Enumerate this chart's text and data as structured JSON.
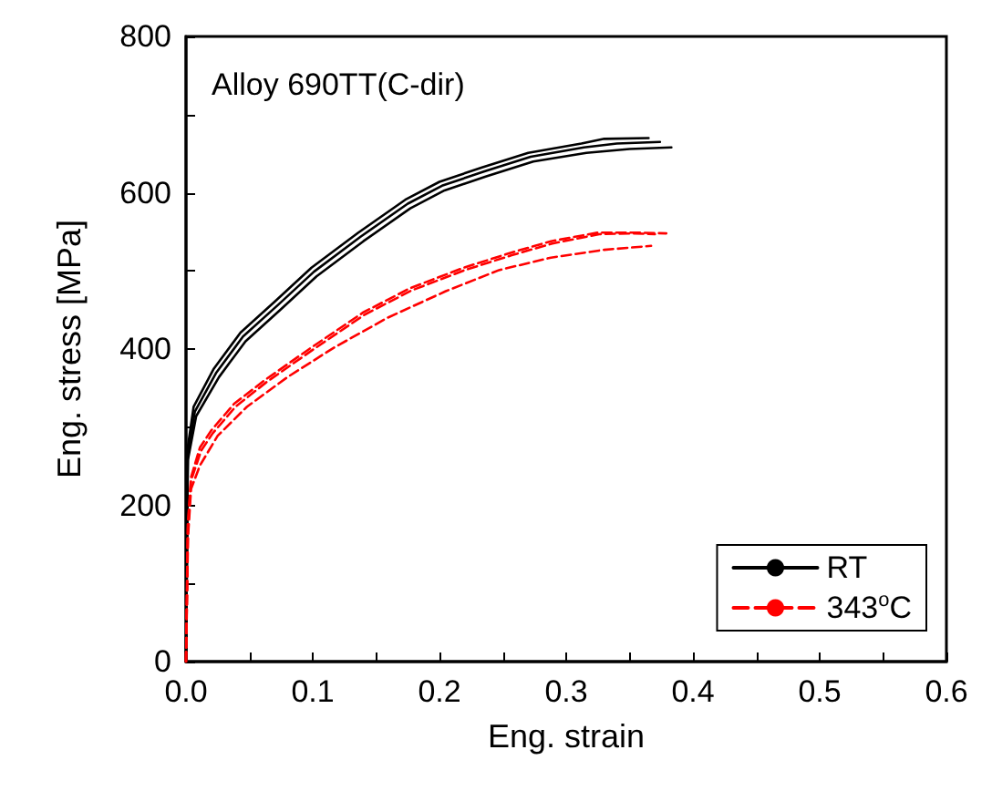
{
  "chart_data": {
    "type": "line",
    "xlabel": "Eng. strain",
    "ylabel": "Eng. stress [MPa]",
    "annotations": [
      "Alloy 690TT(C-dir)"
    ],
    "xlim": [
      0,
      0.6
    ],
    "xticks": [
      {
        "value": 0,
        "label": "0.0"
      },
      {
        "value": 0.05,
        "label": null
      },
      0.1,
      {
        "value": 0.15,
        "label": null
      },
      0.2,
      {
        "value": 0.25,
        "label": null
      },
      0.3,
      {
        "value": 0.35,
        "label": null
      },
      0.4,
      {
        "value": 0.45,
        "label": null
      },
      0.5,
      {
        "value": 0.55,
        "label": null
      },
      0.6
    ],
    "ylim": [
      0,
      800
    ],
    "yticks": [
      0,
      {
        "value": 100,
        "label": null
      },
      200,
      {
        "value": 300,
        "label": null
      },
      400,
      {
        "value": 500,
        "label": null
      },
      600,
      {
        "value": 700,
        "label": null
      },
      800
    ],
    "grid": false,
    "legend": "bottom right",
    "marker": "none",
    "series": [
      {
        "name": "RT",
        "color": "#000000",
        "line_style": "solid",
        "x": [
          0,
          0.0014,
          0.006,
          0.022,
          0.043,
          0.071,
          0.099,
          0.136,
          0.173,
          0.2,
          0.233,
          0.27,
          0.312,
          0.33,
          0.365
        ],
        "values": [
          0,
          274,
          326,
          375,
          421,
          462,
          504,
          549,
          591,
          614,
          632,
          651,
          663,
          669,
          670
        ]
      },
      {
        "color": "#000000",
        "line_style": "solid",
        "x": [
          0,
          0.0014,
          0.007,
          0.024,
          0.045,
          0.073,
          0.101,
          0.138,
          0.175,
          0.202,
          0.235,
          0.272,
          0.314,
          0.34,
          0.374
        ],
        "values": [
          0,
          265,
          320,
          370,
          416,
          457,
          499,
          544,
          586,
          609,
          627,
          646,
          658,
          663,
          665
        ]
      },
      {
        "color": "#000000",
        "line_style": "solid",
        "x": [
          0,
          0.0015,
          0.008,
          0.026,
          0.047,
          0.075,
          0.103,
          0.14,
          0.177,
          0.204,
          0.237,
          0.274,
          0.316,
          0.35,
          0.383
        ],
        "values": [
          0,
          258,
          314,
          364,
          410,
          451,
          493,
          538,
          580,
          603,
          621,
          640,
          651,
          656,
          658
        ]
      },
      {
        "name": "343$^{o}$C",
        "color": "#ff0000",
        "line_style": "dashed",
        "x": [
          0,
          0.0014,
          0.004,
          0.011,
          0.02,
          0.038,
          0.062,
          0.099,
          0.14,
          0.177,
          0.219,
          0.256,
          0.288,
          0.325,
          0.353,
          0.379
        ],
        "values": [
          0,
          175,
          236,
          274,
          296,
          330,
          360,
          402,
          447,
          478,
          504,
          523,
          538,
          549,
          549,
          548
        ]
      },
      {
        "color": "#ff0000",
        "line_style": "dashed",
        "x": [
          0,
          0.0015,
          0.004,
          0.012,
          0.021,
          0.039,
          0.063,
          0.1,
          0.141,
          0.178,
          0.22,
          0.257,
          0.289,
          0.326,
          0.354,
          0.37
        ],
        "values": [
          0,
          170,
          232,
          270,
          292,
          326,
          357,
          399,
          444,
          475,
          501,
          520,
          535,
          547,
          548,
          547
        ]
      },
      {
        "color": "#ff0000",
        "line_style": "dashed",
        "x": [
          0,
          0.0016,
          0.004,
          0.011,
          0.025,
          0.048,
          0.08,
          0.117,
          0.159,
          0.205,
          0.247,
          0.288,
          0.33,
          0.367
        ],
        "values": [
          0,
          160,
          221,
          251,
          289,
          326,
          364,
          402,
          440,
          474,
          501,
          517,
          527,
          532
        ]
      }
    ]
  }
}
